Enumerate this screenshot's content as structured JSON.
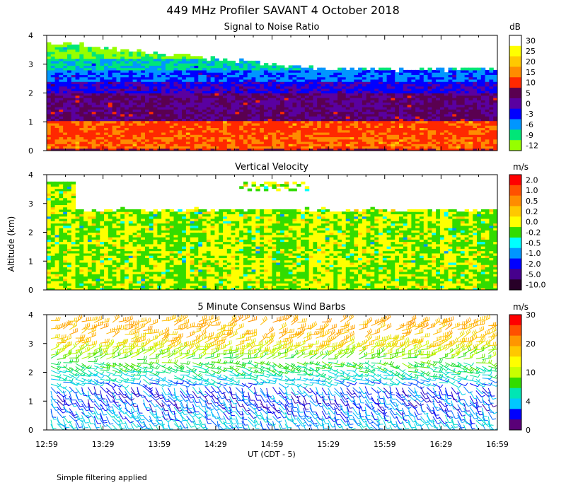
{
  "title": "449 MHz Profiler SAVANT  4 October 2018",
  "ylabel": "Altitude (km)",
  "xlabel": "UT  (CDT - 5)",
  "footer": "Simple filtering applied",
  "x_ticks": [
    "12:59",
    "13:29",
    "13:59",
    "14:29",
    "14:59",
    "15:29",
    "15:59",
    "16:29",
    "16:59"
  ],
  "chart_data": [
    {
      "type": "heatmap",
      "title": "Signal to Noise Ratio",
      "unit": "dB",
      "ylabel": "Altitude (km)",
      "ylim": [
        0,
        4
      ],
      "y_ticks": [
        "0",
        "1",
        "2",
        "3",
        "4"
      ],
      "x_range_hours": [
        12.98,
        16.98
      ],
      "colorbar": {
        "labels": [
          "30",
          "25",
          "20",
          "15",
          "10",
          "5",
          "0",
          "-3",
          "-6",
          "-9",
          "-12"
        ],
        "colors": [
          "#ffffff",
          "#ffff00",
          "#ffc800",
          "#ff8c00",
          "#ff2800",
          "#5a0050",
          "#5a00a0",
          "#0000ff",
          "#0096ff",
          "#00e678",
          "#96ff00"
        ]
      },
      "profile": [
        {
          "alt": [
            0.0,
            0.15
          ],
          "snr": "10 to 30"
        },
        {
          "alt": [
            0.15,
            1.1
          ],
          "snr": "10 to 20"
        },
        {
          "alt": [
            1.1,
            1.6
          ],
          "snr": "0 to 5"
        },
        {
          "alt": [
            1.6,
            2.3
          ],
          "snr": "-3 to 5"
        },
        {
          "alt": [
            2.3,
            2.8
          ],
          "snr": "-9 to -3"
        },
        {
          "alt": [
            2.8,
            3.8
          ],
          "snr": "-12 to -9"
        }
      ]
    },
    {
      "type": "heatmap",
      "title": "Vertical Velocity",
      "unit": "m/s",
      "ylabel": "Altitude (km)",
      "ylim": [
        0,
        4
      ],
      "y_ticks": [
        "0",
        "1",
        "2",
        "3",
        "4"
      ],
      "x_range_hours": [
        12.98,
        16.98
      ],
      "colorbar": {
        "labels": [
          "2.0",
          "1.0",
          "0.5",
          "0.2",
          "0.0",
          "-0.2",
          "-0.5",
          "-1.0",
          "-2.0",
          "-5.0",
          "-10.0"
        ],
        "colors": [
          "#ff0000",
          "#ff5000",
          "#ff8c00",
          "#ffc800",
          "#ffff00",
          "#32dc00",
          "#00ffff",
          "#0096ff",
          "#0000ff",
          "#46008c",
          "#280028"
        ]
      },
      "profile": [
        {
          "alt": [
            0.0,
            2.8
          ],
          "w": "-0.5 to 0.2"
        },
        {
          "alt": [
            2.8,
            3.8
          ],
          "w": "-0.2 to 0.2"
        }
      ]
    },
    {
      "type": "scatter",
      "title": "5 Minute Consensus Wind Barbs",
      "unit": "m/s",
      "ylabel": "Altitude (km)",
      "ylim": [
        0,
        4
      ],
      "y_ticks": [
        "0",
        "1",
        "2",
        "3",
        "4"
      ],
      "x_range_hours": [
        12.98,
        16.98
      ],
      "colorbar": {
        "labels": [
          "30",
          "20",
          "10",
          "4",
          "0"
        ],
        "colors": [
          "#ff0000",
          "#ff5000",
          "#ff9600",
          "#ffc800",
          "#ffff00",
          "#c8ff00",
          "#32dc00",
          "#00e6b4",
          "#00c8ff",
          "#0000ff",
          "#5a0078"
        ]
      },
      "wind_speed_profile": [
        {
          "alt": 0.3,
          "speed": 6
        },
        {
          "alt": 1.0,
          "speed": 3
        },
        {
          "alt": 1.5,
          "speed": 4
        },
        {
          "alt": 2.0,
          "speed": 8
        },
        {
          "alt": 2.5,
          "speed": 12
        },
        {
          "alt": 3.0,
          "speed": 18
        },
        {
          "alt": 3.6,
          "speed": 20
        }
      ]
    }
  ]
}
